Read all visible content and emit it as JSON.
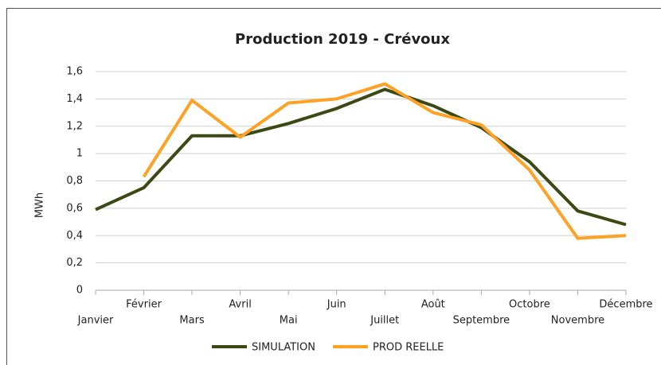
{
  "chart_data": {
    "type": "line",
    "title": "Production 2019 - Crévoux",
    "y_label": "MWh",
    "categories": [
      "Janvier",
      "Février",
      "Mars",
      "Avril",
      "Mai",
      "Juin",
      "Juillet",
      "Août",
      "Septembre",
      "Octobre",
      "Novembre",
      "Décembre"
    ],
    "series": [
      {
        "name": "SIMULATION",
        "color": "#3b4a14",
        "values": [
          0.59,
          0.75,
          1.13,
          1.13,
          1.22,
          1.33,
          1.47,
          1.35,
          1.19,
          0.94,
          0.58,
          0.48
        ]
      },
      {
        "name": "PROD REELLE",
        "color": "#ffa125",
        "values": [
          null,
          0.83,
          1.39,
          1.12,
          1.37,
          1.4,
          1.51,
          1.3,
          1.21,
          0.88,
          0.38,
          0.4
        ]
      }
    ],
    "ylim": [
      0,
      1.6
    ],
    "yticks": [
      0,
      {
        "value": 0.2,
        "label": "0,2"
      },
      {
        "value": 0.4,
        "label": "0,4"
      },
      {
        "value": 0.6,
        "label": "0,6"
      },
      {
        "value": 0.8,
        "label": "0,8"
      },
      1,
      {
        "value": 1.2,
        "label": "1,2"
      },
      {
        "value": 1.4,
        "label": "1,4"
      },
      {
        "value": 1.6,
        "label": "1,6"
      }
    ],
    "grid": true,
    "legend": "bottom"
  }
}
